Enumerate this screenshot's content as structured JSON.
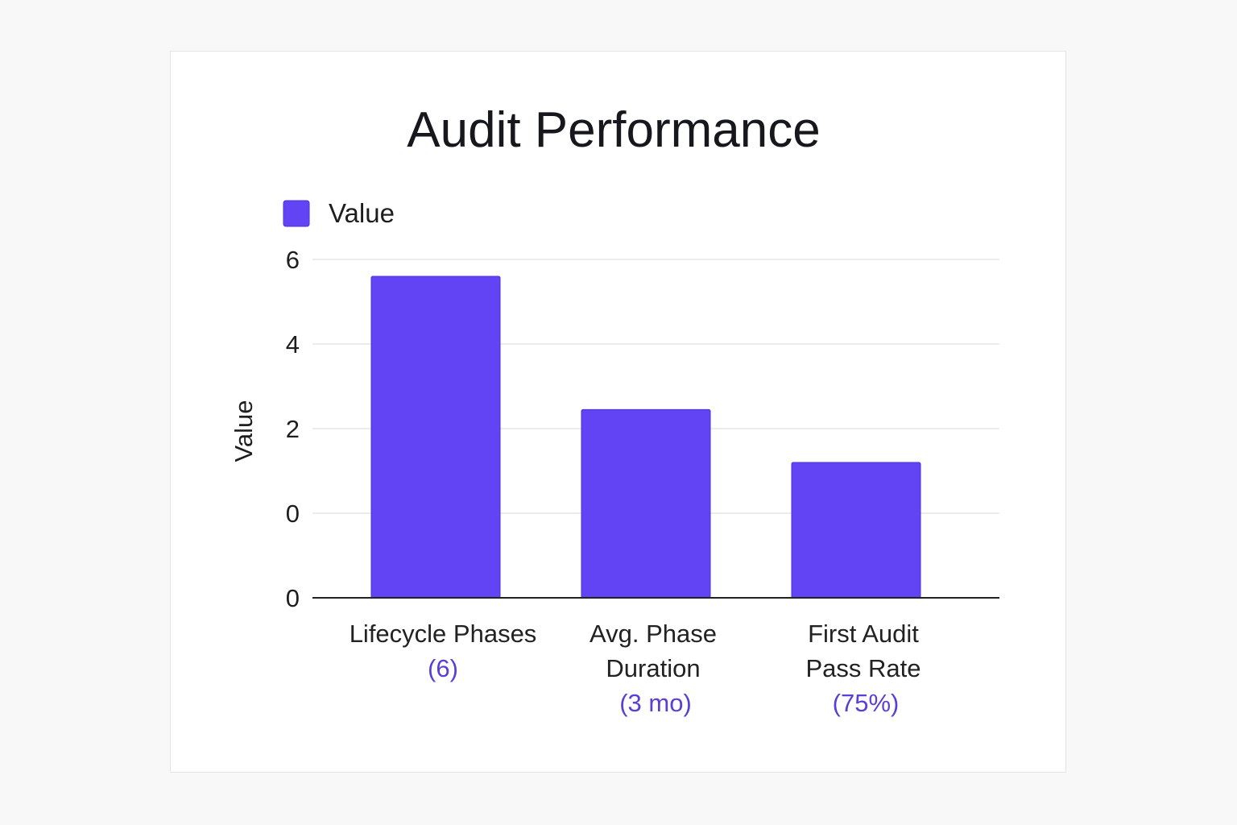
{
  "chart_data": {
    "type": "bar",
    "title": "Audit Performance",
    "ylabel": "Value",
    "xlabel": "",
    "legend": {
      "position": "top-left",
      "entries": [
        "Value"
      ]
    },
    "grid": true,
    "y_ticks": [
      "0",
      "0",
      "2",
      "4",
      "6"
    ],
    "categories": [
      {
        "lines": [
          "Lifecycle Phases"
        ],
        "sub": "(6)"
      },
      {
        "lines": [
          "Avg. Phase",
          "Duration"
        ],
        "sub": "(3 mo)"
      },
      {
        "lines": [
          "First Audit",
          "Pass Rate"
        ],
        "sub": "(75%)"
      }
    ],
    "series": [
      {
        "name": "Value",
        "values": [
          5.6,
          2.45,
          1.2
        ]
      }
    ],
    "ylim": [
      -2,
      6
    ],
    "colors": {
      "bar": "#6244f5",
      "bar_edge": "#4a30d6",
      "sub_label": "#5a3fd6",
      "grid": "#d9d9d9",
      "axis": "#222222"
    }
  }
}
